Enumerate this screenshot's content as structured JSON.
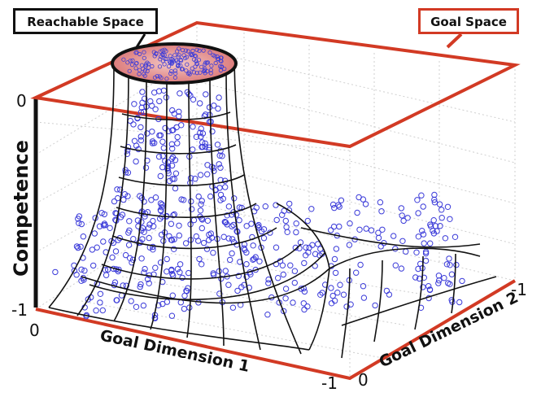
{
  "labels": {
    "reachable_space": "Reachable Space",
    "goal_space": "Goal Space",
    "z_axis": "Competence",
    "x_axis": "Goal Dimension 1",
    "y_axis": "Goal Dimension 2"
  },
  "ticks": {
    "z_top": "0",
    "z_bottom": "-1",
    "x_origin": "0",
    "x_end": "-1",
    "y_origin": "0",
    "y_end": "-1"
  },
  "colors": {
    "goal_space_frame": "#d23a24",
    "reachable_outline": "#111111",
    "reachable_fill": "#e99a9a",
    "sample_points": "#3b3bd9",
    "mesh": "#111111",
    "grid": "#cccccc"
  }
}
